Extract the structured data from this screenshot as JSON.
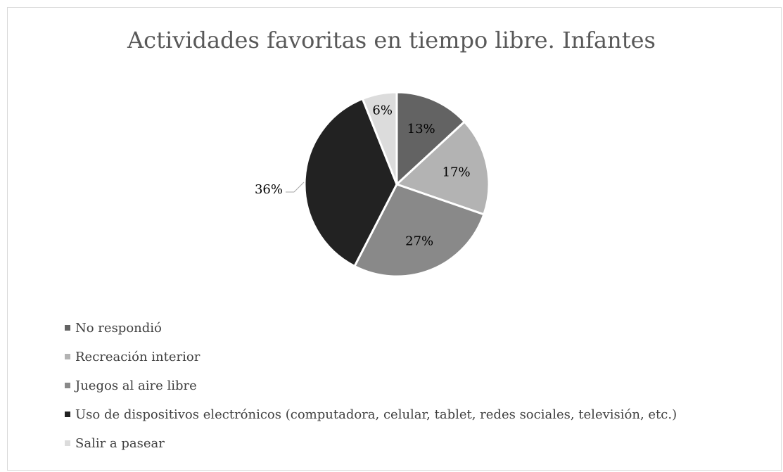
{
  "chart_data": {
    "type": "pie",
    "title": "Actividades favoritas en tiempo libre. Infantes",
    "legend_position": "bottom",
    "slices": [
      {
        "label": "No respondió",
        "value": 13,
        "value_label": "13%",
        "color": "#636363",
        "label_color": "#000000"
      },
      {
        "label": "Recreación interior",
        "value": 17,
        "value_label": "17%",
        "color": "#b3b3b3",
        "label_color": "#000000"
      },
      {
        "label": "Juegos al aire libre",
        "value": 27,
        "value_label": "27%",
        "color": "#898989",
        "label_color": "#000000"
      },
      {
        "label": "Uso de dispositivos electrónicos (computadora, celular, tablet, redes sociales, televisión, etc.)",
        "value": 36,
        "value_label": "36%",
        "color": "#222222",
        "label_color": "#000000"
      },
      {
        "label": "Salir a pasear",
        "value": 6,
        "value_label": "6%",
        "color": "#dcdcdc",
        "label_color": "#000000"
      }
    ]
  }
}
